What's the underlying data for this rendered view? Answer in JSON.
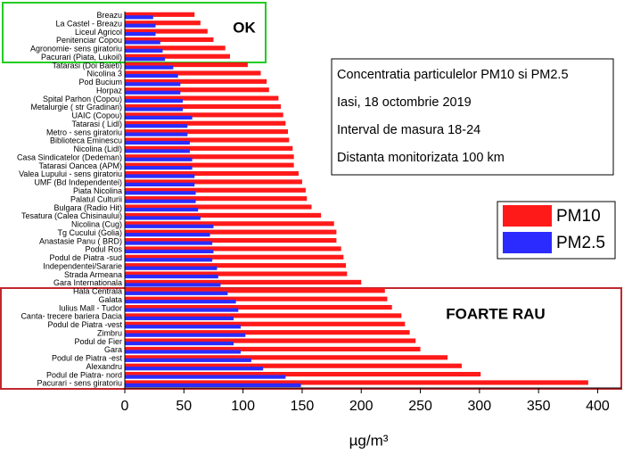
{
  "chart_data": {
    "type": "hbar",
    "categories": [
      "Breazu",
      "La Castel - Breazu",
      "Liceul Agricol",
      "Penitenciar Copou",
      "Agronomie- sens giratoriu",
      "Pacurari (Piata, Lukoil)",
      "Tatarasi (Doi Baieti)",
      "Nicolina 3",
      "Pod Bucium",
      "Horpaz",
      "Spital Parhon (Copou)",
      "Metalurgie ( str Gradinari)",
      "UAIC (Copou)",
      "Tatarasi ( Lidl)",
      "Metro - sens giratoriu",
      "Biblioteca Eminescu",
      "Nicolina (Lidl)",
      "Casa Sindicatelor (Dedeman)",
      "Tatarasi Oancea (APM)",
      "Valea Lupului - sens giratoriu",
      "UMF (Bd Independentei)",
      "Piata Nicolina",
      "Palatul Culturii",
      "Bulgara (Radio Hit)",
      "Tesatura (Calea Chisinaului)",
      "Nicolina (Cug)",
      "Tg Cucului (Golia)",
      "Anastasie Panu ( BRD)",
      "Podul Ros",
      "Podul de Piatra -sud",
      "Independentei/Sararie",
      "Strada Armeana",
      "Gara Internationala",
      "Hala Centrala",
      "Galata",
      "Iulius Mall - Tudor",
      "Canta- trecere bariera Dacia",
      "Podul de Piatra -vest",
      "Zimbru",
      "Podul de Fier",
      "Gara",
      "Podul de Piatra -est",
      "Alexandru",
      "Podul de Piatra- nord",
      "Pacurari - sens giratoriu"
    ],
    "series": [
      {
        "name": "PM10",
        "color": "#ff1a1a",
        "values": [
          59,
          64,
          70,
          75,
          85,
          89,
          104,
          115,
          120,
          122,
          130,
          132,
          134,
          136,
          138,
          139,
          142,
          143,
          143,
          147,
          150,
          153,
          154,
          158,
          166,
          177,
          179,
          179,
          183,
          185,
          187,
          188,
          200,
          220,
          222,
          226,
          234,
          237,
          241,
          246,
          250,
          273,
          285,
          301,
          392
        ]
      },
      {
        "name": "PM2.5",
        "color": "#2b2bff",
        "values": [
          24,
          26,
          26,
          30,
          32,
          34,
          41,
          45,
          47,
          47,
          49,
          49,
          57,
          53,
          53,
          55,
          55,
          57,
          57,
          59,
          59,
          60,
          60,
          62,
          64,
          75,
          72,
          74,
          75,
          74,
          78,
          79,
          81,
          87,
          94,
          96,
          92,
          98,
          102,
          92,
          98,
          107,
          117,
          136,
          149
        ]
      }
    ],
    "xlim": [
      0,
      420
    ],
    "xticks": [
      0,
      50,
      100,
      150,
      200,
      250,
      300,
      350,
      400
    ],
    "x_label": "µg/m³",
    "info_box": [
      "Concentratia particulelor PM10 si PM2.5",
      "Iasi, 18 octombrie 2019",
      "Interval de masura 18-24",
      "Distanta monitorizata 100 km"
    ],
    "annotations": [
      "OK",
      "FOARTE RAU"
    ],
    "legend": "right"
  }
}
